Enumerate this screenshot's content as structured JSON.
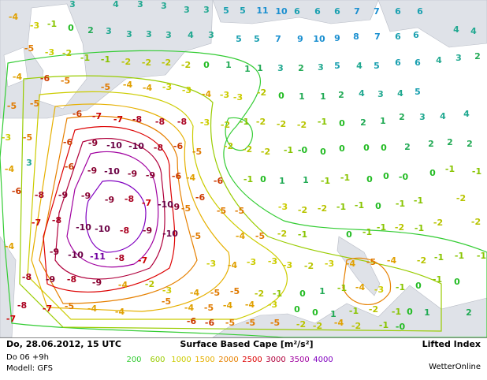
{
  "map": {
    "labels": [
      [
        "3",
        "4",
        "3",
        "3",
        "3",
        "3",
        "5",
        "5",
        "11",
        "10",
        "6",
        "6",
        "6",
        "7",
        "7",
        "6",
        "6"
      ],
      [
        "-4",
        "-3",
        "-1",
        "0",
        "2",
        "3",
        "3",
        "3",
        "3",
        "4",
        "3",
        "5",
        "5",
        "7",
        "9",
        "10",
        "9",
        "8",
        "7",
        "6",
        "6",
        "4",
        "4"
      ],
      [
        "-5",
        "-3",
        "-2",
        "-1",
        "-1",
        "-2",
        "-2",
        "-2",
        "-2",
        "0",
        "1",
        "1",
        "1",
        "3",
        "2",
        "3",
        "5",
        "4",
        "5",
        "6",
        "6",
        "4",
        "3",
        "2"
      ],
      [
        "-4",
        "-6",
        "-5",
        "-5",
        "-4",
        "-4",
        "-3",
        "-3",
        "-4",
        "-3",
        "-3",
        "-2",
        "0",
        "1",
        "1",
        "2",
        "4",
        "3",
        "4",
        "5"
      ],
      [
        "-5",
        "-5",
        "-6",
        "-7",
        "-7",
        "-8",
        "-8",
        "-8",
        "-3",
        "-2",
        "-1",
        "-2",
        "-2",
        "-2",
        "-1",
        "0",
        "2",
        "1",
        "2",
        "3",
        "4",
        "4"
      ],
      [
        "-3",
        "-5",
        "-6",
        "-9",
        "-10",
        "-10",
        "-8",
        "-6",
        "-5",
        "-2",
        "-2",
        "-2",
        "-1",
        "-0",
        "0",
        "0",
        "0",
        "0",
        "2",
        "2",
        "2",
        "2"
      ],
      [
        "3",
        "-4",
        "-6",
        "-9",
        "-10",
        "-9",
        "-9",
        "-6",
        "-4",
        "-6",
        "-1",
        "0",
        "1",
        "1",
        "-1",
        "-1",
        "0",
        "0",
        "-0",
        "0",
        "-1",
        "-1"
      ],
      [
        "-6",
        "-8",
        "-9",
        "-9",
        "-9",
        "-8",
        "-7",
        "-10",
        "-5",
        "-6",
        "-5",
        "-5",
        "-3",
        "-2",
        "-2",
        "-1",
        "-1",
        "0",
        "-1",
        "-1",
        "-2"
      ],
      [
        "-7",
        "-8",
        "-10",
        "-10",
        "-8",
        "-9",
        "-9",
        "-10",
        "-5",
        "-4",
        "-5",
        "-2",
        "-1",
        "0",
        "-1",
        "-1",
        "-2",
        "-1",
        "-2",
        "-2"
      ],
      [
        "-4",
        "-9",
        "-10",
        "-11",
        "-8",
        "-7",
        "-3",
        "-4",
        "-3",
        "-3",
        "-3",
        "-2",
        "-3",
        "-4",
        "-5",
        "-4",
        "-2",
        "-1",
        "-1",
        "-1"
      ],
      [
        "-8",
        "-9",
        "-8",
        "-9",
        "-4",
        "-2",
        "-3",
        "-4",
        "-5",
        "-5",
        "-2",
        "-1",
        "0",
        "1",
        "-1",
        "-4",
        "-3",
        "-1",
        "0",
        "-1",
        "0"
      ],
      [
        "-8",
        "-7",
        "-5",
        "-4",
        "-4",
        "-5",
        "-4",
        "-5",
        "-4",
        "-4",
        "-3",
        "0",
        "0",
        "1",
        "-1",
        "-2",
        "-1",
        "0",
        "1",
        "2"
      ],
      [
        "-7",
        "-6",
        "-6",
        "-5",
        "-5",
        "-5",
        "-2",
        "-2",
        "-4",
        "-2",
        "-1",
        "-0"
      ]
    ]
  },
  "footer": {
    "date": "Do, 28.06.2012, 15 UTC",
    "run": "Do 06 +9h",
    "model": "Modell: GFS",
    "title": "Surface Based Cape [m²/s²]",
    "product": "Lifted Index",
    "brand": "WetterOnline"
  },
  "legend": {
    "values": [
      200,
      600,
      1000,
      1500,
      2000,
      2500,
      3000,
      3500,
      4000
    ],
    "colors": [
      "#33cc33",
      "#99cc00",
      "#cccc00",
      "#e6b000",
      "#e68000",
      "#dd0000",
      "#b0003c",
      "#a000a0",
      "#8000c0"
    ]
  }
}
